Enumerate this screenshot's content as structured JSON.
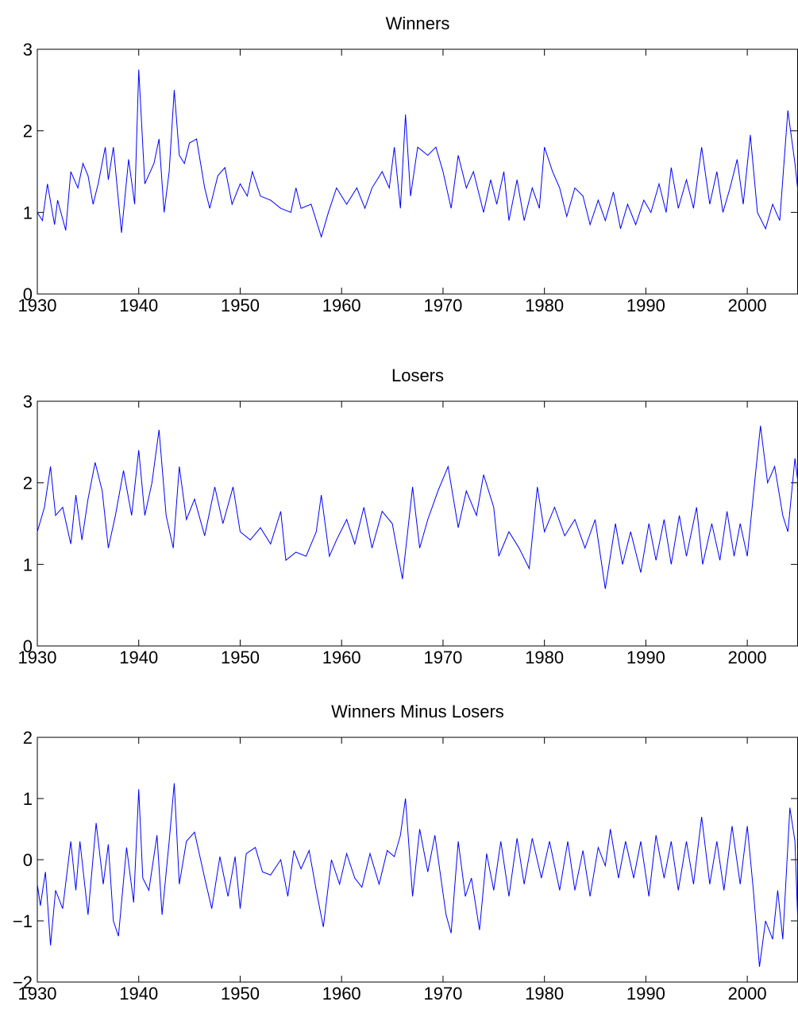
{
  "chart_data": [
    {
      "type": "line",
      "title": "Winners",
      "color": "#0000ff",
      "xlim": [
        1930,
        2005
      ],
      "ylim": [
        0,
        3
      ],
      "xticks": [
        1930,
        1940,
        1950,
        1960,
        1970,
        1980,
        1990,
        2000
      ],
      "yticks": [
        0,
        1,
        2,
        3
      ],
      "x": [
        1930,
        1930.5,
        1931,
        1931.7,
        1932,
        1932.8,
        1933.3,
        1934,
        1934.5,
        1935,
        1935.5,
        1936,
        1936.7,
        1937,
        1937.5,
        1938.3,
        1939,
        1939.6,
        1940,
        1940.6,
        1941.5,
        1942,
        1942.5,
        1943,
        1943.5,
        1944,
        1944.5,
        1945,
        1945.7,
        1946.5,
        1947,
        1947.8,
        1948.5,
        1949.2,
        1950,
        1950.7,
        1951.2,
        1952,
        1953,
        1954,
        1955,
        1955.5,
        1956,
        1957,
        1958,
        1958.7,
        1959.5,
        1960.5,
        1961.5,
        1962.3,
        1963,
        1964,
        1964.7,
        1965.2,
        1965.8,
        1966.3,
        1966.8,
        1967.5,
        1968.5,
        1969.3,
        1970,
        1970.8,
        1971.5,
        1972.3,
        1973,
        1974,
        1974.7,
        1975.3,
        1976,
        1976.5,
        1977.3,
        1978,
        1978.8,
        1979.5,
        1980,
        1980.8,
        1981.5,
        1982.2,
        1983,
        1983.8,
        1984.5,
        1985.3,
        1986,
        1986.8,
        1987.5,
        1988.2,
        1989,
        1989.8,
        1990.5,
        1991.3,
        1992,
        1992.5,
        1993.2,
        1994,
        1994.7,
        1995.5,
        1996.3,
        1997,
        1997.6,
        1998.3,
        1999,
        1999.6,
        2000.3,
        2001,
        2001.8,
        2002.5,
        2003.2,
        2004,
        2004.7,
        2005
      ],
      "values": [
        1.0,
        0.9,
        1.35,
        0.85,
        1.15,
        0.78,
        1.5,
        1.3,
        1.6,
        1.45,
        1.1,
        1.35,
        1.8,
        1.4,
        1.8,
        0.75,
        1.65,
        1.1,
        2.75,
        1.35,
        1.6,
        1.9,
        1.0,
        1.5,
        2.5,
        1.7,
        1.6,
        1.85,
        1.9,
        1.3,
        1.05,
        1.45,
        1.55,
        1.1,
        1.35,
        1.2,
        1.5,
        1.2,
        1.15,
        1.05,
        1.0,
        1.3,
        1.05,
        1.1,
        0.7,
        1.0,
        1.3,
        1.1,
        1.3,
        1.05,
        1.3,
        1.5,
        1.3,
        1.8,
        1.05,
        2.2,
        1.2,
        1.8,
        1.7,
        1.8,
        1.5,
        1.05,
        1.7,
        1.3,
        1.5,
        1.0,
        1.4,
        1.1,
        1.5,
        0.9,
        1.4,
        0.9,
        1.3,
        1.05,
        1.8,
        1.5,
        1.3,
        0.95,
        1.3,
        1.2,
        0.85,
        1.15,
        0.9,
        1.25,
        0.8,
        1.1,
        0.85,
        1.15,
        1.0,
        1.35,
        1.0,
        1.55,
        1.05,
        1.4,
        1.05,
        1.8,
        1.1,
        1.5,
        1.0,
        1.3,
        1.65,
        1.1,
        1.95,
        1.0,
        0.8,
        1.1,
        0.9,
        2.25,
        1.6,
        1.25
      ]
    },
    {
      "type": "line",
      "title": "Losers",
      "color": "#0000ff",
      "xlim": [
        1930,
        2005
      ],
      "ylim": [
        0,
        3
      ],
      "xticks": [
        1930,
        1940,
        1950,
        1960,
        1970,
        1980,
        1990,
        2000
      ],
      "yticks": [
        0,
        1,
        2,
        3
      ],
      "x": [
        1930,
        1930.7,
        1931.3,
        1931.8,
        1932.5,
        1933.3,
        1933.8,
        1934.4,
        1935,
        1935.7,
        1936.4,
        1937,
        1937.7,
        1938.5,
        1939.3,
        1940,
        1940.6,
        1941.3,
        1942,
        1942.7,
        1943.4,
        1944,
        1944.7,
        1945.5,
        1946.5,
        1947.5,
        1948.3,
        1949.3,
        1950,
        1951,
        1952,
        1953,
        1954,
        1954.5,
        1955.5,
        1956.5,
        1957.5,
        1958,
        1958.8,
        1959.5,
        1960.5,
        1961.3,
        1962.2,
        1963,
        1964,
        1965,
        1966,
        1967,
        1967.7,
        1968.5,
        1969.5,
        1970.5,
        1971.5,
        1972.3,
        1973.3,
        1974,
        1975,
        1975.5,
        1976.5,
        1977.5,
        1978.5,
        1979.3,
        1980,
        1981,
        1982,
        1983,
        1984,
        1985,
        1986,
        1987,
        1987.7,
        1988.5,
        1989.5,
        1990.3,
        1991,
        1991.8,
        1992.5,
        1993.3,
        1994,
        1995,
        1995.6,
        1996.5,
        1997.3,
        1998,
        1998.7,
        1999.3,
        2000,
        2000.8,
        2001.3,
        2002,
        2002.7,
        2003.5,
        2004,
        2004.7,
        2005
      ],
      "values": [
        1.4,
        1.7,
        2.2,
        1.6,
        1.7,
        1.25,
        1.85,
        1.3,
        1.8,
        2.25,
        1.9,
        1.2,
        1.6,
        2.15,
        1.6,
        2.4,
        1.6,
        2.0,
        2.65,
        1.6,
        1.2,
        2.2,
        1.55,
        1.8,
        1.35,
        1.95,
        1.5,
        1.95,
        1.4,
        1.3,
        1.45,
        1.25,
        1.65,
        1.05,
        1.15,
        1.1,
        1.4,
        1.85,
        1.1,
        1.3,
        1.55,
        1.25,
        1.7,
        1.2,
        1.65,
        1.5,
        0.82,
        1.95,
        1.2,
        1.55,
        1.9,
        2.2,
        1.45,
        1.9,
        1.6,
        2.1,
        1.7,
        1.1,
        1.4,
        1.2,
        0.95,
        1.95,
        1.4,
        1.7,
        1.35,
        1.55,
        1.2,
        1.55,
        0.7,
        1.5,
        1.0,
        1.4,
        0.9,
        1.5,
        1.05,
        1.55,
        1.0,
        1.6,
        1.1,
        1.7,
        1.0,
        1.5,
        1.05,
        1.65,
        1.1,
        1.5,
        1.1,
        2.1,
        2.7,
        2.0,
        2.2,
        1.6,
        1.4,
        2.3,
        2.0
      ]
    },
    {
      "type": "line",
      "title": "Winners Minus Losers",
      "color": "#0000ff",
      "xlim": [
        1930,
        2005
      ],
      "ylim": [
        -2,
        2
      ],
      "xticks": [
        1930,
        1940,
        1950,
        1960,
        1970,
        1980,
        1990,
        2000
      ],
      "yticks": [
        {
          "value": -2,
          "label": "−2"
        },
        {
          "value": -1,
          "label": "−1"
        },
        0,
        1,
        2
      ],
      "x": [
        1930,
        1930.3,
        1930.8,
        1931.3,
        1931.8,
        1932.5,
        1933.3,
        1933.8,
        1934.2,
        1935,
        1935.8,
        1936.5,
        1937,
        1937.5,
        1938,
        1938.8,
        1939.5,
        1940,
        1940.4,
        1941,
        1941.8,
        1942.3,
        1943,
        1943.5,
        1944,
        1944.7,
        1945.5,
        1946.5,
        1947.2,
        1948,
        1948.8,
        1949.5,
        1950,
        1950.6,
        1951.5,
        1952.2,
        1953,
        1954,
        1954.7,
        1955.3,
        1956,
        1956.8,
        1957.5,
        1958.2,
        1959,
        1959.8,
        1960.5,
        1961.3,
        1962,
        1962.8,
        1963.7,
        1964.5,
        1965.2,
        1965.8,
        1966.3,
        1967,
        1967.7,
        1968.5,
        1969.2,
        1970.3,
        1970.8,
        1971.5,
        1972.2,
        1972.8,
        1973.6,
        1974.3,
        1975,
        1975.7,
        1976.5,
        1977.3,
        1978,
        1978.8,
        1979.7,
        1980.5,
        1981.5,
        1982.3,
        1983,
        1983.8,
        1984.5,
        1985.3,
        1986,
        1986.5,
        1987.3,
        1988,
        1988.8,
        1989.5,
        1990.3,
        1991,
        1991.8,
        1992.5,
        1993.2,
        1994,
        1994.7,
        1995.5,
        1996.3,
        1997,
        1997.7,
        1998.5,
        1999.3,
        2000,
        2000.6,
        2001.2,
        2001.8,
        2002.5,
        2003,
        2003.5,
        2004.2,
        2004.7,
        2005
      ],
      "values": [
        -0.4,
        -0.75,
        -0.2,
        -1.4,
        -0.5,
        -0.8,
        0.3,
        -0.5,
        0.3,
        -0.9,
        0.6,
        -0.4,
        0.25,
        -1.0,
        -1.25,
        0.2,
        -0.7,
        1.15,
        -0.3,
        -0.5,
        0.4,
        -0.9,
        0.3,
        1.25,
        -0.4,
        0.3,
        0.45,
        -0.3,
        -0.8,
        0.05,
        -0.6,
        0.05,
        -0.8,
        0.1,
        0.2,
        -0.2,
        -0.25,
        0.0,
        -0.6,
        0.15,
        -0.15,
        0.15,
        -0.5,
        -1.1,
        0.0,
        -0.4,
        0.1,
        -0.3,
        -0.45,
        0.1,
        -0.4,
        0.15,
        0.05,
        0.4,
        1.0,
        -0.6,
        0.5,
        -0.2,
        0.4,
        -0.9,
        -1.2,
        0.3,
        -0.6,
        -0.3,
        -1.15,
        0.1,
        -0.5,
        0.3,
        -0.6,
        0.35,
        -0.4,
        0.35,
        -0.3,
        0.3,
        -0.5,
        0.3,
        -0.5,
        0.15,
        -0.6,
        0.2,
        -0.1,
        0.5,
        -0.3,
        0.3,
        -0.3,
        0.3,
        -0.6,
        0.4,
        -0.3,
        0.3,
        -0.5,
        0.3,
        -0.4,
        0.7,
        -0.4,
        0.3,
        -0.5,
        0.55,
        -0.4,
        0.55,
        -0.5,
        -1.75,
        -1.0,
        -1.3,
        -0.5,
        -1.3,
        0.85,
        0.3,
        -1.1
      ]
    }
  ]
}
